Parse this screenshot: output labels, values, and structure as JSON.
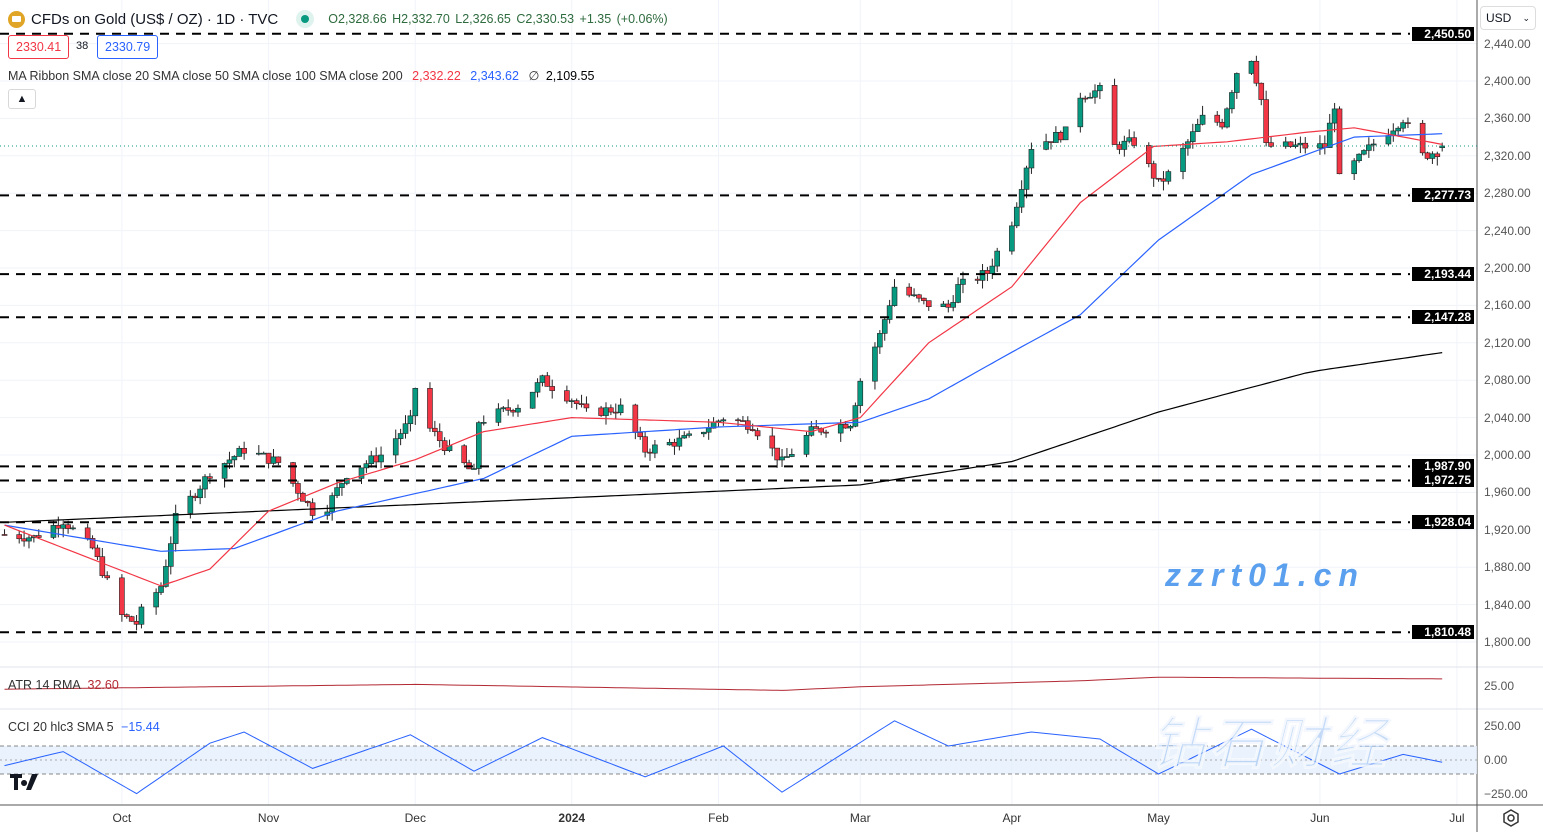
{
  "header": {
    "title": "CFDs on Gold (US$ / OZ) · 1D · TVC",
    "ohlc": "O2,328.66 H2,332.70 L2,326.65 C2,330.53 +1.35 (+0.06%)",
    "sell": "2330.41",
    "spread": "38",
    "buy": "2330.79"
  },
  "ma_ribbon": {
    "label": "MA Ribbon SMA close 20 SMA close 50 SMA close 100 SMA close 200",
    "v1": "2,332.22",
    "v2": "2,343.62",
    "v3": "∅",
    "v4": "2,109.55"
  },
  "atr": {
    "label": "ATR 14 RMA",
    "value": "32.60",
    "axis": "25.00"
  },
  "cci": {
    "label": "CCI 20 hlc3 SMA 5",
    "value": "−15.44",
    "axis": [
      "250.00",
      "0.00",
      "−250.00"
    ]
  },
  "currency": "USD",
  "watermark": {
    "cn": "钻石财经",
    "url": "zzrt01.cn"
  },
  "colors": {
    "up": "#089981",
    "down": "#f23645",
    "sma20": "#f23645",
    "sma50": "#2962ff",
    "sma200": "#000000",
    "atr": "#b22833",
    "cci": "#2962ff"
  },
  "chart_data": {
    "type": "candlestick",
    "price_axis": [
      "2,440.00",
      "2,400.00",
      "2,360.00",
      "2,320.00",
      "2,280.00",
      "2,240.00",
      "2,200.00",
      "2,160.00",
      "2,120.00",
      "2,080.00",
      "2,040.00",
      "2,000.00",
      "1,960.00",
      "1,920.00",
      "1,880.00",
      "1,840.00",
      "1,800.00"
    ],
    "time_axis": [
      {
        "label": "Oct",
        "date": "2023-10-02"
      },
      {
        "label": "Nov",
        "date": "2023-11-01"
      },
      {
        "label": "Dec",
        "date": "2023-12-01"
      },
      {
        "label": "2024",
        "date": "2024-01-02"
      },
      {
        "label": "Feb",
        "date": "2024-02-01"
      },
      {
        "label": "Mar",
        "date": "2024-03-01"
      },
      {
        "label": "Apr",
        "date": "2024-04-01"
      },
      {
        "label": "May",
        "date": "2024-05-01"
      },
      {
        "label": "Jun",
        "date": "2024-06-03"
      },
      {
        "label": "Jul",
        "date": "2024-07-01"
      }
    ],
    "levels": [
      "2,450.50",
      "2,277.73",
      "2,193.44",
      "2,147.28",
      "1,987.90",
      "1,972.75",
      "1,928.04",
      "1,810.48"
    ],
    "last_price": 2330.53,
    "closes": [
      [
        "2023-09-08",
        1915
      ],
      [
        "2023-09-14",
        1912
      ],
      [
        "2023-09-20",
        1930
      ],
      [
        "2023-09-26",
        1900
      ],
      [
        "2023-10-02",
        1828
      ],
      [
        "2023-10-05",
        1820
      ],
      [
        "2023-10-06",
        1832
      ],
      [
        "2023-10-10",
        1860
      ],
      [
        "2023-10-13",
        1932
      ],
      [
        "2023-10-20",
        1981
      ],
      [
        "2023-10-27",
        2006
      ],
      [
        "2023-11-03",
        1992
      ],
      [
        "2023-11-10",
        1940
      ],
      [
        "2023-11-13",
        1945
      ],
      [
        "2023-11-17",
        1980
      ],
      [
        "2023-11-24",
        2000
      ],
      [
        "2023-11-30",
        2036
      ],
      [
        "2023-12-01",
        2072
      ],
      [
        "2023-12-04",
        2028
      ],
      [
        "2023-12-08",
        2004
      ],
      [
        "2023-12-13",
        1980
      ],
      [
        "2023-12-14",
        2036
      ],
      [
        "2023-12-22",
        2053
      ],
      [
        "2023-12-27",
        2080
      ],
      [
        "2024-01-02",
        2060
      ],
      [
        "2024-01-05",
        2045
      ],
      [
        "2024-01-12",
        2050
      ],
      [
        "2024-01-17",
        2005
      ],
      [
        "2024-01-26",
        2018
      ],
      [
        "2024-02-02",
        2040
      ],
      [
        "2024-02-08",
        2032
      ],
      [
        "2024-02-14",
        1992
      ],
      [
        "2024-02-20",
        2025
      ],
      [
        "2024-02-28",
        2035
      ],
      [
        "2024-03-01",
        2080
      ],
      [
        "2024-03-05",
        2128
      ],
      [
        "2024-03-08",
        2180
      ],
      [
        "2024-03-14",
        2162
      ],
      [
        "2024-03-19",
        2158
      ],
      [
        "2024-03-21",
        2180
      ],
      [
        "2024-03-27",
        2195
      ],
      [
        "2024-04-01",
        2250
      ],
      [
        "2024-04-05",
        2330
      ],
      [
        "2024-04-12",
        2345
      ],
      [
        "2024-04-15",
        2385
      ],
      [
        "2024-04-19",
        2390
      ],
      [
        "2024-04-22",
        2330
      ],
      [
        "2024-04-26",
        2335
      ],
      [
        "2024-05-01",
        2290
      ],
      [
        "2024-05-03",
        2300
      ],
      [
        "2024-05-10",
        2360
      ],
      [
        "2024-05-14",
        2355
      ],
      [
        "2024-05-17",
        2410
      ],
      [
        "2024-05-20",
        2425
      ],
      [
        "2024-05-22",
        2380
      ],
      [
        "2024-05-23",
        2330
      ],
      [
        "2024-05-31",
        2330
      ],
      [
        "2024-06-04",
        2330
      ],
      [
        "2024-06-06",
        2375
      ],
      [
        "2024-06-07",
        2295
      ],
      [
        "2024-06-14",
        2333
      ],
      [
        "2024-06-20",
        2360
      ],
      [
        "2024-06-24",
        2320
      ],
      [
        "2024-06-27",
        2325
      ],
      [
        "2024-06-28",
        2330.53
      ]
    ],
    "sma20": [
      [
        "2023-09-08",
        1925
      ],
      [
        "2023-10-10",
        1860
      ],
      [
        "2023-10-20",
        1878
      ],
      [
        "2023-11-01",
        1940
      ],
      [
        "2023-11-15",
        1970
      ],
      [
        "2023-12-01",
        1995
      ],
      [
        "2023-12-15",
        2025
      ],
      [
        "2024-01-02",
        2040
      ],
      [
        "2024-02-01",
        2035
      ],
      [
        "2024-02-20",
        2025
      ],
      [
        "2024-03-01",
        2040
      ],
      [
        "2024-03-15",
        2120
      ],
      [
        "2024-04-01",
        2180
      ],
      [
        "2024-04-15",
        2270
      ],
      [
        "2024-04-30",
        2330
      ],
      [
        "2024-05-15",
        2335
      ],
      [
        "2024-05-31",
        2345
      ],
      [
        "2024-06-10",
        2350
      ],
      [
        "2024-06-28",
        2332.22
      ]
    ],
    "sma50": [
      [
        "2023-09-08",
        1925
      ],
      [
        "2023-10-10",
        1897
      ],
      [
        "2023-10-25",
        1900
      ],
      [
        "2023-11-15",
        1940
      ],
      [
        "2023-12-15",
        1975
      ],
      [
        "2024-01-02",
        2020
      ],
      [
        "2024-02-01",
        2030
      ],
      [
        "2024-03-01",
        2035
      ],
      [
        "2024-03-15",
        2060
      ],
      [
        "2024-04-01",
        2110
      ],
      [
        "2024-04-15",
        2150
      ],
      [
        "2024-05-01",
        2230
      ],
      [
        "2024-05-20",
        2300
      ],
      [
        "2024-06-10",
        2340
      ],
      [
        "2024-06-28",
        2343.62
      ]
    ],
    "sma200": [
      [
        "2023-09-08",
        1928
      ],
      [
        "2023-12-01",
        1947
      ],
      [
        "2024-03-01",
        1968
      ],
      [
        "2024-04-01",
        1993
      ],
      [
        "2024-05-01",
        2046
      ],
      [
        "2024-06-01",
        2089
      ],
      [
        "2024-06-28",
        2109.55
      ]
    ],
    "atr_series": [
      [
        "2023-09-08",
        24
      ],
      [
        "2023-12-01",
        28
      ],
      [
        "2024-02-14",
        23
      ],
      [
        "2024-03-01",
        26
      ],
      [
        "2024-04-15",
        31
      ],
      [
        "2024-05-01",
        34
      ],
      [
        "2024-06-28",
        32.6
      ]
    ],
    "cci_series": [
      [
        "2023-09-08",
        -40
      ],
      [
        "2023-09-20",
        60
      ],
      [
        "2023-10-05",
        -240
      ],
      [
        "2023-10-20",
        120
      ],
      [
        "2023-10-27",
        200
      ],
      [
        "2023-11-10",
        -60
      ],
      [
        "2023-11-30",
        180
      ],
      [
        "2023-12-13",
        -80
      ],
      [
        "2023-12-27",
        160
      ],
      [
        "2024-01-17",
        -120
      ],
      [
        "2024-02-02",
        100
      ],
      [
        "2024-02-14",
        -230
      ],
      [
        "2024-03-08",
        280
      ],
      [
        "2024-03-19",
        100
      ],
      [
        "2024-04-05",
        200
      ],
      [
        "2024-04-19",
        150
      ],
      [
        "2024-05-01",
        -100
      ],
      [
        "2024-05-20",
        220
      ],
      [
        "2024-06-07",
        -100
      ],
      [
        "2024-06-20",
        40
      ],
      [
        "2024-06-28",
        -15.44
      ]
    ]
  }
}
